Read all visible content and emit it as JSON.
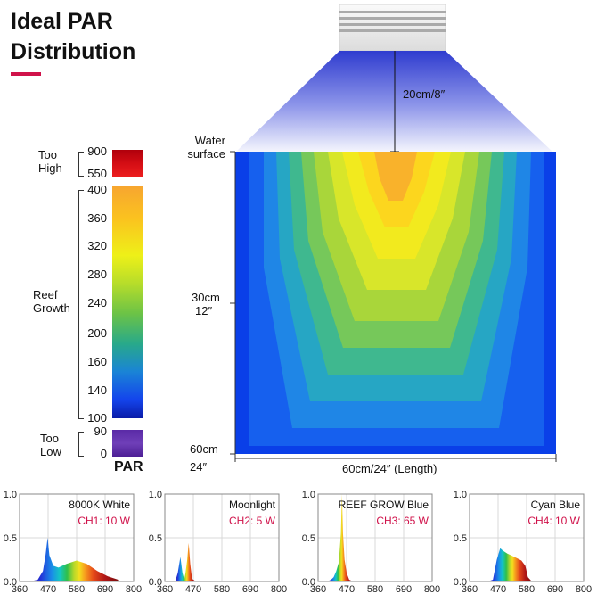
{
  "title": {
    "line1": "Ideal PAR",
    "line2": "Distribution"
  },
  "colors": {
    "accent": "#d0124a",
    "light_blue": "#2f3ccf",
    "channel_label": "#d0124a"
  },
  "legend": {
    "unit": "PAR",
    "too_high": {
      "label_line1": "Too",
      "label_line2": "High",
      "ticks": [
        "900",
        "550"
      ]
    },
    "reef_growth": {
      "label_line1": "Reef",
      "label_line2": "Growth",
      "ticks": [
        "400",
        "360",
        "320",
        "280",
        "240",
        "200",
        "160",
        "140",
        "100"
      ]
    },
    "too_low": {
      "label_line1": "Too",
      "label_line2": "Low",
      "ticks": [
        "90",
        "0"
      ]
    }
  },
  "distribution": {
    "fixture_distance": "20cm/8″",
    "water_surface_line1": "Water",
    "water_surface_line2": "surface",
    "depth_mid_line1": "30cm",
    "depth_mid_line2": "12″",
    "depth_bottom_line1": "60cm",
    "depth_bottom_line2": "24″",
    "length_label": "60cm/24″  (Length)"
  },
  "chart_data": [
    {
      "type": "area",
      "title": "8000K White",
      "channel": "CH1: 10 W",
      "x_ticks": [
        "360",
        "470",
        "580",
        "690",
        "800"
      ],
      "y_ticks": [
        "0.0",
        "0.5",
        "1.0"
      ],
      "xlim": [
        360,
        800
      ],
      "ylim": [
        0,
        1
      ],
      "x": [
        400,
        430,
        450,
        460,
        468,
        475,
        490,
        510,
        540,
        580,
        620,
        660,
        700,
        740
      ],
      "y": [
        0,
        0.02,
        0.12,
        0.3,
        0.5,
        0.3,
        0.18,
        0.16,
        0.2,
        0.24,
        0.2,
        0.12,
        0.06,
        0.02
      ]
    },
    {
      "type": "area",
      "title": "Moonlight",
      "channel": "CH2: 5 W",
      "x_ticks": [
        "360",
        "470",
        "580",
        "690",
        "800"
      ],
      "y_ticks": [
        "0.0",
        "0.5",
        "1.0"
      ],
      "xlim": [
        360,
        800
      ],
      "ylim": [
        0,
        1
      ],
      "x": [
        400,
        410,
        420,
        428,
        435,
        440,
        446,
        452,
        458,
        465,
        480
      ],
      "y": [
        0,
        0.1,
        0.28,
        0.1,
        0.02,
        0.1,
        0.24,
        0.44,
        0.2,
        0.03,
        0
      ]
    },
    {
      "type": "area",
      "title": "REEF GROW Blue",
      "channel": "CH3: 65 W",
      "x_ticks": [
        "360",
        "470",
        "580",
        "690",
        "800"
      ],
      "y_ticks": [
        "0.0",
        "0.5",
        "1.0"
      ],
      "xlim": [
        360,
        800
      ],
      "ylim": [
        0,
        1
      ],
      "x": [
        395,
        410,
        420,
        430,
        440,
        448,
        452,
        456,
        462,
        470,
        480,
        495
      ],
      "y": [
        0,
        0.02,
        0.05,
        0.12,
        0.22,
        0.55,
        1.0,
        0.55,
        0.25,
        0.1,
        0.02,
        0
      ]
    },
    {
      "type": "area",
      "title": "Cyan Blue",
      "channel": "CH4: 10 W",
      "x_ticks": [
        "360",
        "470",
        "580",
        "690",
        "800"
      ],
      "y_ticks": [
        "0.0",
        "0.5",
        "1.0"
      ],
      "xlim": [
        360,
        800
      ],
      "ylim": [
        0,
        1
      ],
      "x": [
        430,
        450,
        465,
        478,
        490,
        505,
        520,
        540,
        560,
        575,
        585,
        600
      ],
      "y": [
        0,
        0.02,
        0.25,
        0.38,
        0.35,
        0.32,
        0.3,
        0.27,
        0.24,
        0.18,
        0.05,
        0
      ]
    }
  ]
}
